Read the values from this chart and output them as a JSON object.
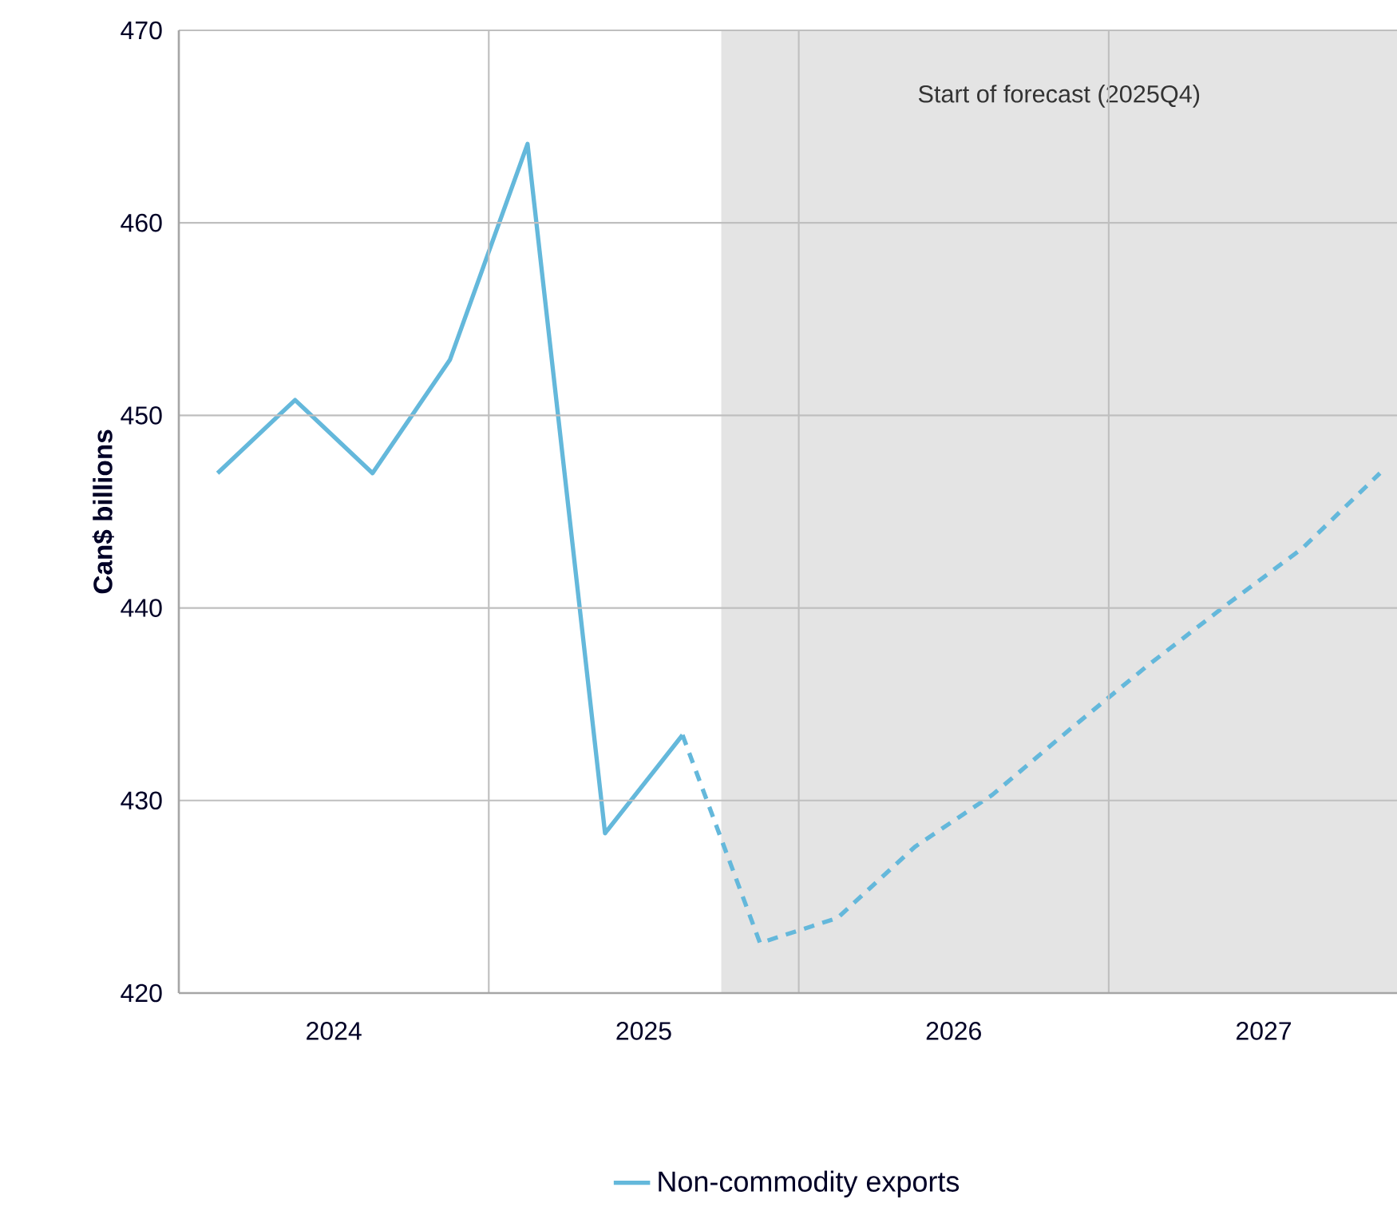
{
  "chart_data": {
    "type": "line",
    "ylabel": "Can$ billions",
    "xlim": [
      2024.0,
      2027.93
    ],
    "ylim": [
      420,
      470
    ],
    "xticks": [
      {
        "value": 2024.5,
        "label": "2024"
      },
      {
        "value": 2025,
        "label": null
      },
      {
        "value": 2025.5,
        "label": "2025"
      },
      {
        "value": 2026,
        "label": null
      },
      {
        "value": 2026.5,
        "label": "2026"
      },
      {
        "value": 2027,
        "label": null
      },
      {
        "value": 2027.5,
        "label": "2027"
      }
    ],
    "yticks": [
      420,
      430,
      440,
      450,
      460,
      470
    ],
    "grid": true,
    "legend": "bottom",
    "marker": "none",
    "bands": [
      {
        "axis": "x",
        "from": 2025.75,
        "to": 2027.93,
        "label": "Start of forecast (2025Q4)",
        "color": "#e4e4e4"
      }
    ],
    "series": [
      {
        "name": "Non-commodity exports",
        "color": "#64b8db",
        "line_style": "solid",
        "x": [
          2024.125,
          2024.375,
          2024.625,
          2024.875,
          2025.125,
          2025.375,
          2025.625
        ],
        "values": [
          447.0,
          450.8,
          447.0,
          452.9,
          464.1,
          428.3,
          433.4
        ]
      },
      {
        "color": "#64b8db",
        "line_style": "dashed",
        "x": [
          2025.625,
          2025.875,
          2026.125,
          2026.375,
          2026.625,
          2026.875,
          2027.125,
          2027.375,
          2027.625,
          2027.875
        ],
        "values": [
          433.4,
          422.6,
          423.9,
          427.6,
          430.3,
          433.7,
          437.0,
          440.1,
          443.1,
          447.0
        ]
      }
    ]
  }
}
